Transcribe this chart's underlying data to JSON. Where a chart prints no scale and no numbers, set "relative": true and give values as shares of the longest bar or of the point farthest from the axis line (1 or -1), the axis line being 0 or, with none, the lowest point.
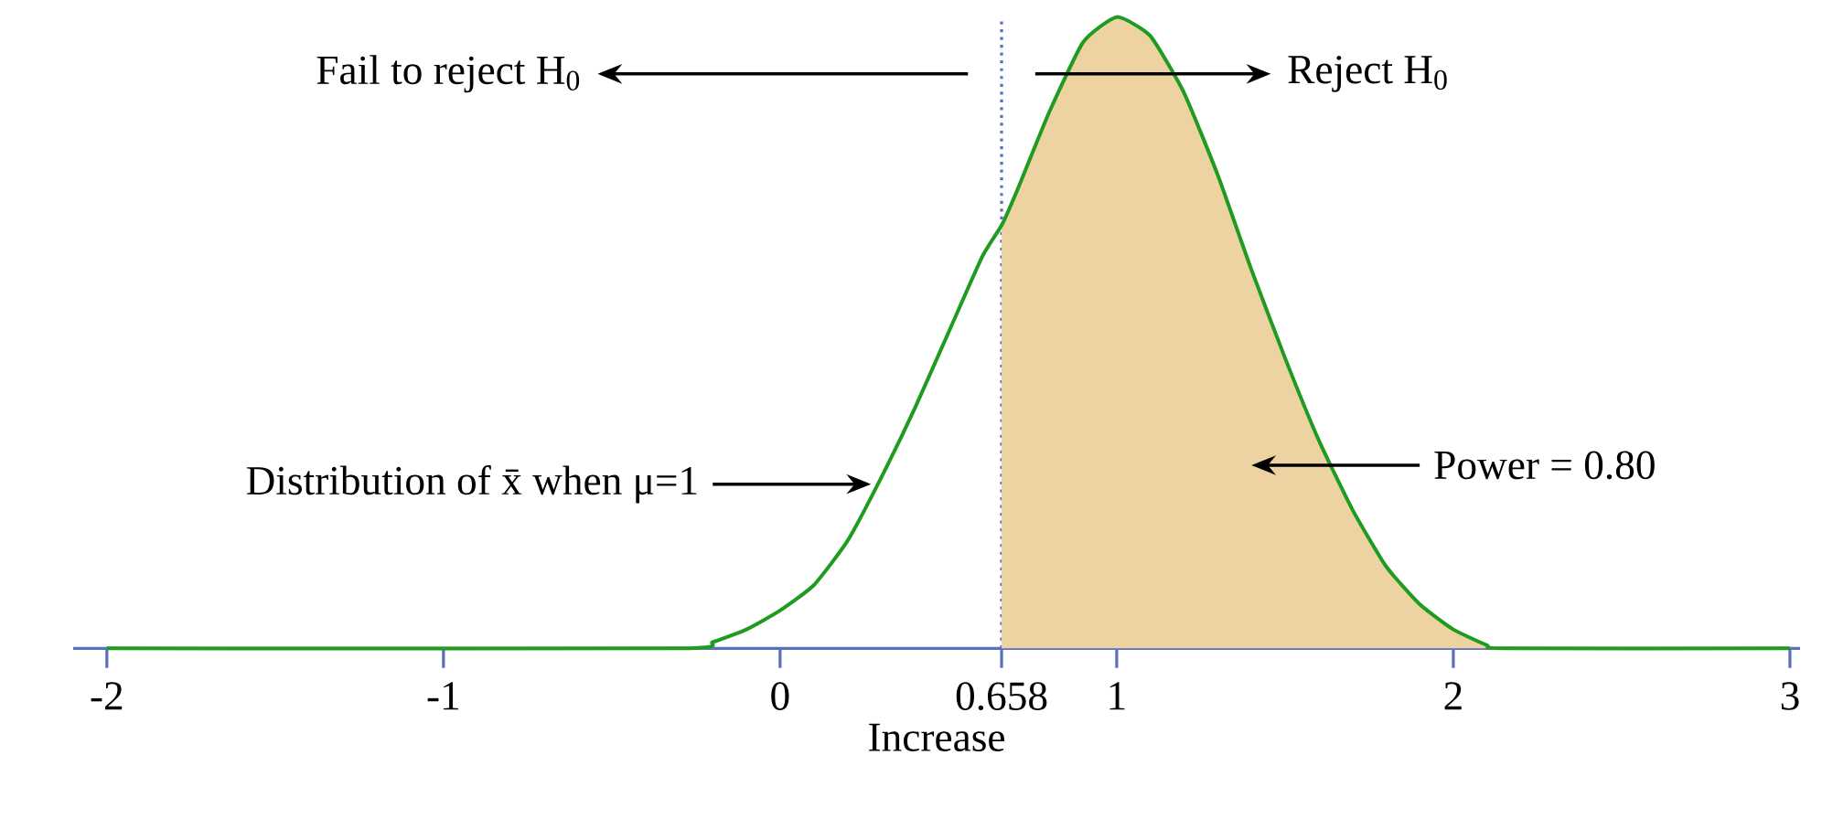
{
  "chart_data": {
    "type": "line",
    "relative": true,
    "xlabel": "Increase",
    "xlim": [
      -2.1,
      3.03
    ],
    "xticks": [
      -2,
      -1,
      0,
      0.658,
      1,
      2,
      3
    ],
    "series": [
      {
        "type": "area",
        "color": "#edd2a2",
        "x": [
          0.658,
          0.7,
          0.8,
          0.9,
          1.0,
          1.1,
          1.2,
          1.3,
          1.4,
          1.5,
          1.6,
          1.7,
          1.8,
          1.9,
          2.0,
          2.1,
          2.15
        ],
        "values": [
          0.67,
          0.72,
          0.85,
          0.96,
          1.0,
          0.97,
          0.88,
          0.75,
          0.6,
          0.46,
          0.33,
          0.22,
          0.13,
          0.07,
          0.03,
          0.005,
          0
        ]
      },
      {
        "color": "#1f9c1f",
        "x": [
          -2.0,
          -0.3,
          -0.2,
          -0.1,
          0,
          0.1,
          0.2,
          0.3,
          0.4,
          0.5,
          0.6,
          0.658,
          0.7,
          0.8,
          0.9,
          1.0,
          1.1,
          1.2,
          1.3,
          1.4,
          1.5,
          1.6,
          1.7,
          1.8,
          1.9,
          2.0,
          2.1,
          2.15,
          3.0
        ],
        "values": [
          0,
          0,
          0.01,
          0.03,
          0.06,
          0.1,
          0.17,
          0.27,
          0.38,
          0.5,
          0.62,
          0.67,
          0.72,
          0.85,
          0.96,
          1.0,
          0.97,
          0.88,
          0.75,
          0.6,
          0.46,
          0.33,
          0.22,
          0.13,
          0.07,
          0.03,
          0.005,
          0,
          0
        ]
      }
    ],
    "ref_lines": [
      {
        "axis": "x",
        "value": 0.658,
        "color": "#5b6fbf",
        "line_style": "dotted"
      }
    ],
    "annotations": [
      "Fail to reject H$_{0}$",
      "Reject H$_{0}$",
      {
        "text": "Distribution of x̄ when μ=1",
        "x": 0.27,
        "y": 0.26
      },
      "Power = 0.80"
    ]
  }
}
